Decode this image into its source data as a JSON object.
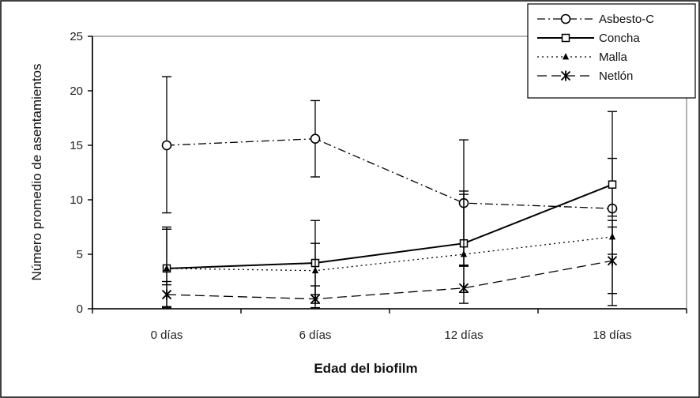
{
  "chart_data": {
    "type": "line",
    "xlabel": "Edad del biofilm",
    "ylabel": "Número promedio de asentamientos",
    "categories": [
      "0 días",
      "6 días",
      "12 días",
      "18 días"
    ],
    "ylim": [
      0,
      25
    ],
    "yticks": [
      0,
      5,
      10,
      15,
      20,
      25
    ],
    "grid": false,
    "legend_position": "top-right",
    "series": [
      {
        "name": "Asbesto-C",
        "values": [
          15.0,
          15.6,
          9.7,
          9.2
        ],
        "error_low": [
          8.8,
          12.1,
          4.0,
          0.3
        ],
        "error_high": [
          21.3,
          19.1,
          15.5,
          18.1
        ],
        "line_style": "dash-dot",
        "marker": "circle"
      },
      {
        "name": "Concha",
        "values": [
          3.7,
          4.2,
          6.0,
          11.4
        ],
        "error_low": [
          0.2,
          0.5,
          1.5,
          8.5
        ],
        "error_high": [
          7.3,
          8.1,
          10.5,
          13.8
        ],
        "line_style": "solid",
        "marker": "square"
      },
      {
        "name": "Malla",
        "values": [
          3.7,
          3.5,
          5.0,
          6.6
        ],
        "error_low": [
          2.2,
          1.3,
          4.0,
          5.0
        ],
        "error_high": [
          7.5,
          6.0,
          10.8,
          8.1
        ],
        "line_style": "dotted",
        "marker": "triangle"
      },
      {
        "name": "Netlón",
        "values": [
          1.3,
          0.9,
          1.9,
          4.4
        ],
        "error_low": [
          0.1,
          0.1,
          0.5,
          1.4
        ],
        "error_high": [
          2.5,
          2.1,
          3.9,
          7.5
        ],
        "line_style": "dashed",
        "marker": "star"
      }
    ]
  }
}
